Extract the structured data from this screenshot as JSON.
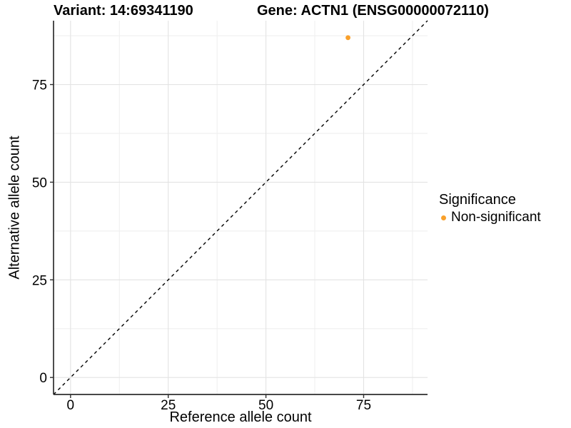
{
  "plot_title": {
    "variant": "Variant: 14:69341190",
    "gene": "Gene: ACTN1 (ENSG00000072110)"
  },
  "chart_data": {
    "type": "scatter",
    "title": "Variant: 14:69341190    Gene: ACTN1 (ENSG00000072110)",
    "xlabel": "Reference allele count",
    "ylabel": "Alternative allele count",
    "xlim": [
      -4.35,
      91.35
    ],
    "ylim": [
      -4.35,
      91.35
    ],
    "x_ticks": [
      0,
      25,
      50,
      75
    ],
    "y_ticks": [
      0,
      25,
      50,
      75
    ],
    "x_minor_ticks": [
      12.5,
      37.5,
      62.5,
      87.5
    ],
    "y_minor_ticks": [
      12.5,
      37.5,
      62.5,
      87.5
    ],
    "grid": true,
    "series": [
      {
        "name": "Non-significant",
        "color": "#F9A02B",
        "points": [
          [
            71,
            87
          ]
        ]
      }
    ],
    "reference_line": {
      "equation": "y = x",
      "style": "dashed",
      "color": "#000000"
    },
    "legend": {
      "position": "right",
      "title": "Significance",
      "entries": [
        {
          "label": "Non-significant",
          "color": "#F9A02B"
        }
      ]
    }
  },
  "colors": {
    "background": "#FFFFFF",
    "grid_major": "#E3E3E3",
    "grid_minor": "#EEEEEE",
    "axis_line": "#2E2E2E",
    "text": "#000000",
    "point": "#F9A02B"
  }
}
